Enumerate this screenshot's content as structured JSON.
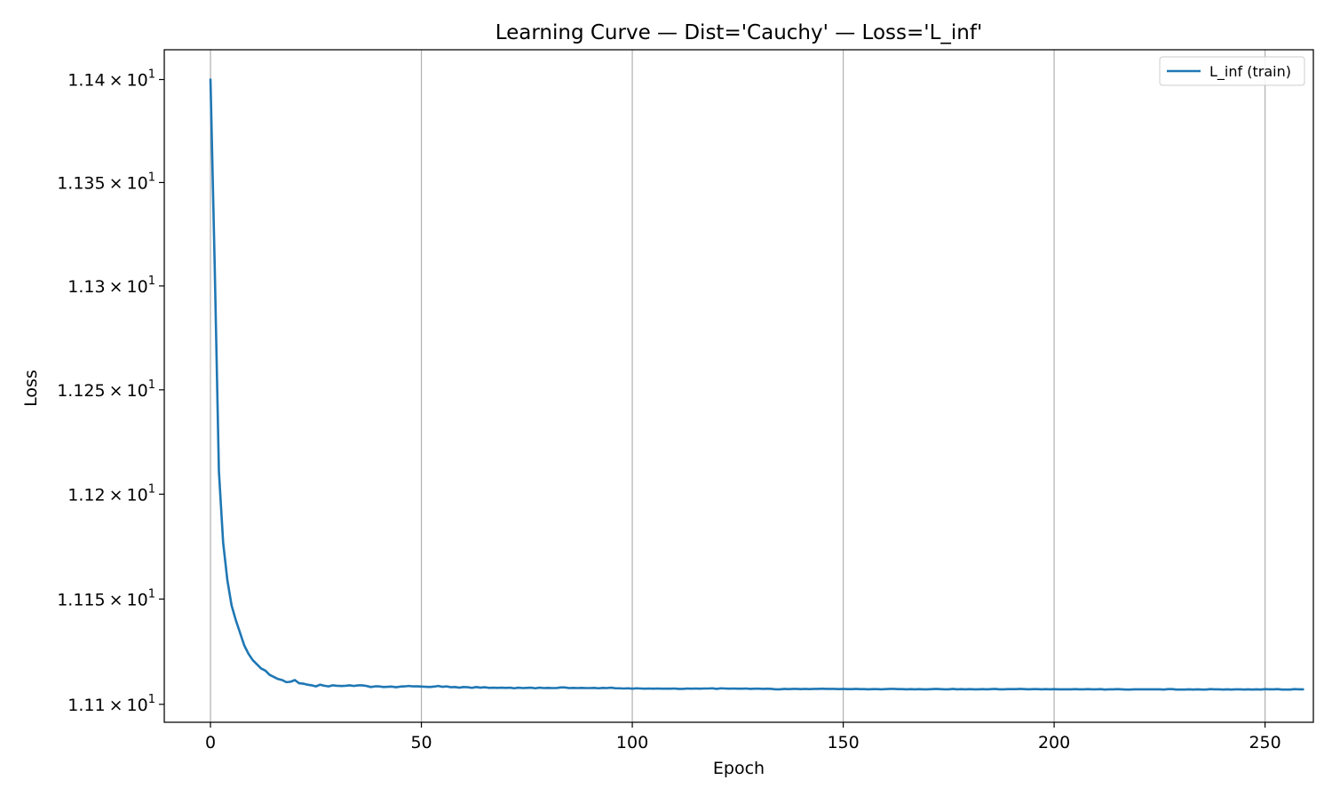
{
  "chart_data": {
    "type": "line",
    "title": "Learning Curve — Dist='Cauchy' — Loss='L_inf'",
    "xlabel": "Epoch",
    "ylabel": "Loss",
    "yscale": "log",
    "xlim": [
      -10.95,
      261.45
    ],
    "ylim": [
      11.0915,
      11.4145
    ],
    "x_ticks": [
      0,
      50,
      100,
      150,
      200,
      250
    ],
    "x_tick_labels": [
      "0",
      "50",
      "100",
      "150",
      "200",
      "250"
    ],
    "y_ticks": [
      11.1,
      11.15,
      11.2,
      11.25,
      11.3,
      11.35,
      11.4
    ],
    "y_tick_labels": [
      {
        "mantissa": "1.11",
        "times": "×",
        "base": "10",
        "exp": "1"
      },
      {
        "mantissa": "1.115",
        "times": "×",
        "base": "10",
        "exp": "1"
      },
      {
        "mantissa": "1.12",
        "times": "×",
        "base": "10",
        "exp": "1"
      },
      {
        "mantissa": "1.125",
        "times": "×",
        "base": "10",
        "exp": "1"
      },
      {
        "mantissa": "1.13",
        "times": "×",
        "base": "10",
        "exp": "1"
      },
      {
        "mantissa": "1.135",
        "times": "×",
        "base": "10",
        "exp": "1"
      },
      {
        "mantissa": "1.14",
        "times": "×",
        "base": "10",
        "exp": "1"
      }
    ],
    "grid": "vertical",
    "legend_position": "top-right",
    "series": [
      {
        "name": "L_inf (train)",
        "color": "#1f77b4",
        "x_start": 0,
        "x_step": 1,
        "values": [
          11.4,
          11.31,
          11.211,
          11.177,
          11.159,
          11.147,
          11.14,
          11.134,
          11.128,
          11.124,
          11.121,
          11.119,
          11.117,
          11.116,
          11.114,
          11.113,
          11.112,
          11.1115,
          11.1105,
          11.1107,
          11.1115,
          11.11,
          11.1098,
          11.1093,
          11.109,
          11.1085,
          11.1093,
          11.1088,
          11.1085,
          11.109,
          11.1088,
          11.1087,
          11.1088,
          11.109,
          11.1087,
          11.109,
          11.109,
          11.1087,
          11.1082,
          11.1085,
          11.1085,
          11.1082,
          11.1083,
          11.1084,
          11.1081,
          11.1084,
          11.1085,
          11.1087,
          11.1085,
          11.1085,
          11.1084,
          11.1083,
          11.1082,
          11.1084,
          11.1087,
          11.1083,
          11.1085,
          11.1081,
          11.1082,
          11.1079,
          11.1082,
          11.1081,
          11.1078,
          11.1082,
          11.1079,
          11.1081,
          11.1078,
          11.1079,
          11.1078,
          11.1079,
          11.1078,
          11.1079,
          11.1076,
          11.1079,
          11.1077,
          11.1078,
          11.1079,
          11.1076,
          11.1079,
          11.1077,
          11.1078,
          11.1077,
          11.1077,
          11.108,
          11.108,
          11.1077,
          11.1078,
          11.1077,
          11.1078,
          11.1077,
          11.1077,
          11.1078,
          11.1076,
          11.1078,
          11.1077,
          11.1079,
          11.1076,
          11.1076,
          11.1075,
          11.1076,
          11.1074,
          11.1076,
          11.1075,
          11.1074,
          11.1075,
          11.1074,
          11.1075,
          11.1074,
          11.1074,
          11.1074,
          11.1075,
          11.1073,
          11.1073,
          11.1075,
          11.1074,
          11.1075,
          11.1074,
          11.1075,
          11.1075,
          11.1076,
          11.1073,
          11.1076,
          11.1075,
          11.1074,
          11.1075,
          11.1074,
          11.1074,
          11.1075,
          11.1073,
          11.1074,
          11.1074,
          11.1073,
          11.1074,
          11.1073,
          11.1071,
          11.1071,
          11.1073,
          11.1072,
          11.1073,
          11.1073,
          11.1072,
          11.1073,
          11.1072,
          11.1073,
          11.1073,
          11.1074,
          11.1073,
          11.1073,
          11.1073,
          11.1072,
          11.1073,
          11.1072,
          11.1072,
          11.1073,
          11.1072,
          11.1072,
          11.1071,
          11.1072,
          11.1072,
          11.1071,
          11.1072,
          11.1073,
          11.1073,
          11.1072,
          11.1072,
          11.1071,
          11.1072,
          11.1071,
          11.1072,
          11.1071,
          11.1071,
          11.1072,
          11.1073,
          11.1072,
          11.1071,
          11.1071,
          11.1073,
          11.1071,
          11.1072,
          11.1071,
          11.1072,
          11.1071,
          11.1071,
          11.1072,
          11.1071,
          11.1072,
          11.1073,
          11.1071,
          11.1071,
          11.1072,
          11.1072,
          11.1072,
          11.1073,
          11.1072,
          11.1071,
          11.1072,
          11.1072,
          11.1071,
          11.1072,
          11.1071,
          11.1072,
          11.1071,
          11.1071,
          11.1071,
          11.1071,
          11.1072,
          11.1071,
          11.1071,
          11.1072,
          11.1071,
          11.1071,
          11.1072,
          11.107,
          11.1071,
          11.1071,
          11.1072,
          11.1071,
          11.107,
          11.107,
          11.1071,
          11.1071,
          11.1071,
          11.1071,
          11.1071,
          11.1071,
          11.1071,
          11.107,
          11.1072,
          11.1072,
          11.107,
          11.107,
          11.107,
          11.1071,
          11.107,
          11.1071,
          11.107,
          11.107,
          11.1072,
          11.1071,
          11.1071,
          11.107,
          11.1071,
          11.107,
          11.1071,
          11.1071,
          11.107,
          11.1071,
          11.107,
          11.1071,
          11.107,
          11.1072,
          11.1071,
          11.1071,
          11.1072,
          11.107,
          11.107,
          11.107,
          11.1072,
          11.1071,
          11.1071
        ]
      }
    ]
  }
}
